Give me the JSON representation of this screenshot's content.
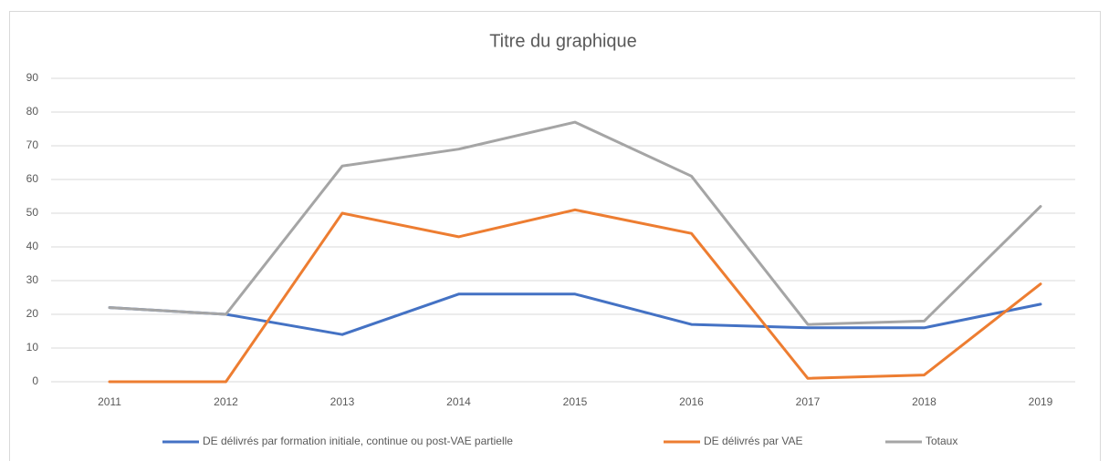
{
  "chart_data": {
    "type": "line",
    "title": "Titre du graphique",
    "categories": [
      "2011",
      "2012",
      "2013",
      "2014",
      "2015",
      "2016",
      "2017",
      "2018",
      "2019"
    ],
    "series": [
      {
        "name": "DE délivrés par formation initiale, continue ou post-VAE partielle",
        "color": "#4472c4",
        "values": [
          22,
          20,
          14,
          26,
          26,
          17,
          16,
          16,
          23
        ]
      },
      {
        "name": "DE délivrés par VAE",
        "color": "#ed7d31",
        "values": [
          0,
          0,
          50,
          43,
          51,
          44,
          1,
          2,
          29
        ]
      },
      {
        "name": "Totaux",
        "color": "#a5a5a5",
        "values": [
          22,
          20,
          64,
          69,
          77,
          61,
          17,
          18,
          52
        ]
      }
    ],
    "ylim": [
      0,
      90
    ],
    "yticks": [
      0,
      10,
      20,
      30,
      40,
      50,
      60,
      70,
      80,
      90
    ],
    "grid": true,
    "legend": "bottom"
  }
}
